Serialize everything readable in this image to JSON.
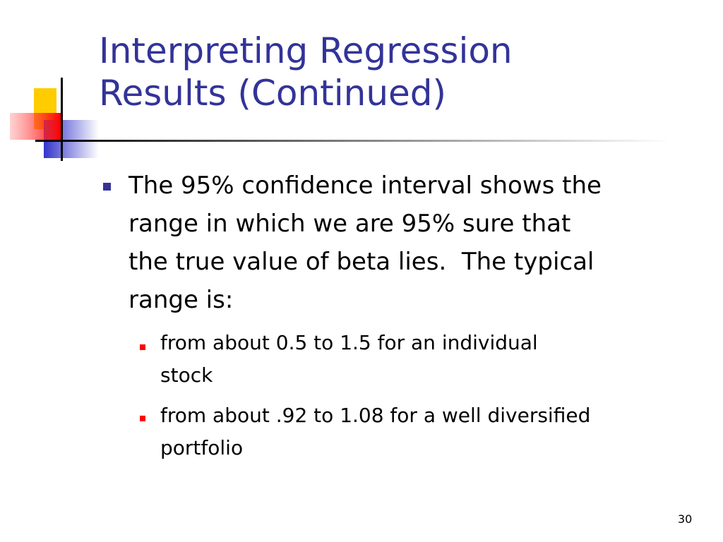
{
  "slide": {
    "title_lines": [
      "Interpreting Regression",
      "Results (Continued)"
    ],
    "bullets": [
      {
        "lines": [
          "The 95% confidence interval shows the",
          "range in which we are 95% sure that",
          "the true value of beta lies.  The typical",
          "range is:"
        ],
        "sub_bullets": [
          {
            "lines": [
              "from about 0.5 to 1.5 for an individual",
              "stock"
            ]
          },
          {
            "lines": [
              "from about .92 to 1.08 for a well diversified",
              "portfolio"
            ]
          }
        ]
      }
    ],
    "page_number": "30"
  }
}
